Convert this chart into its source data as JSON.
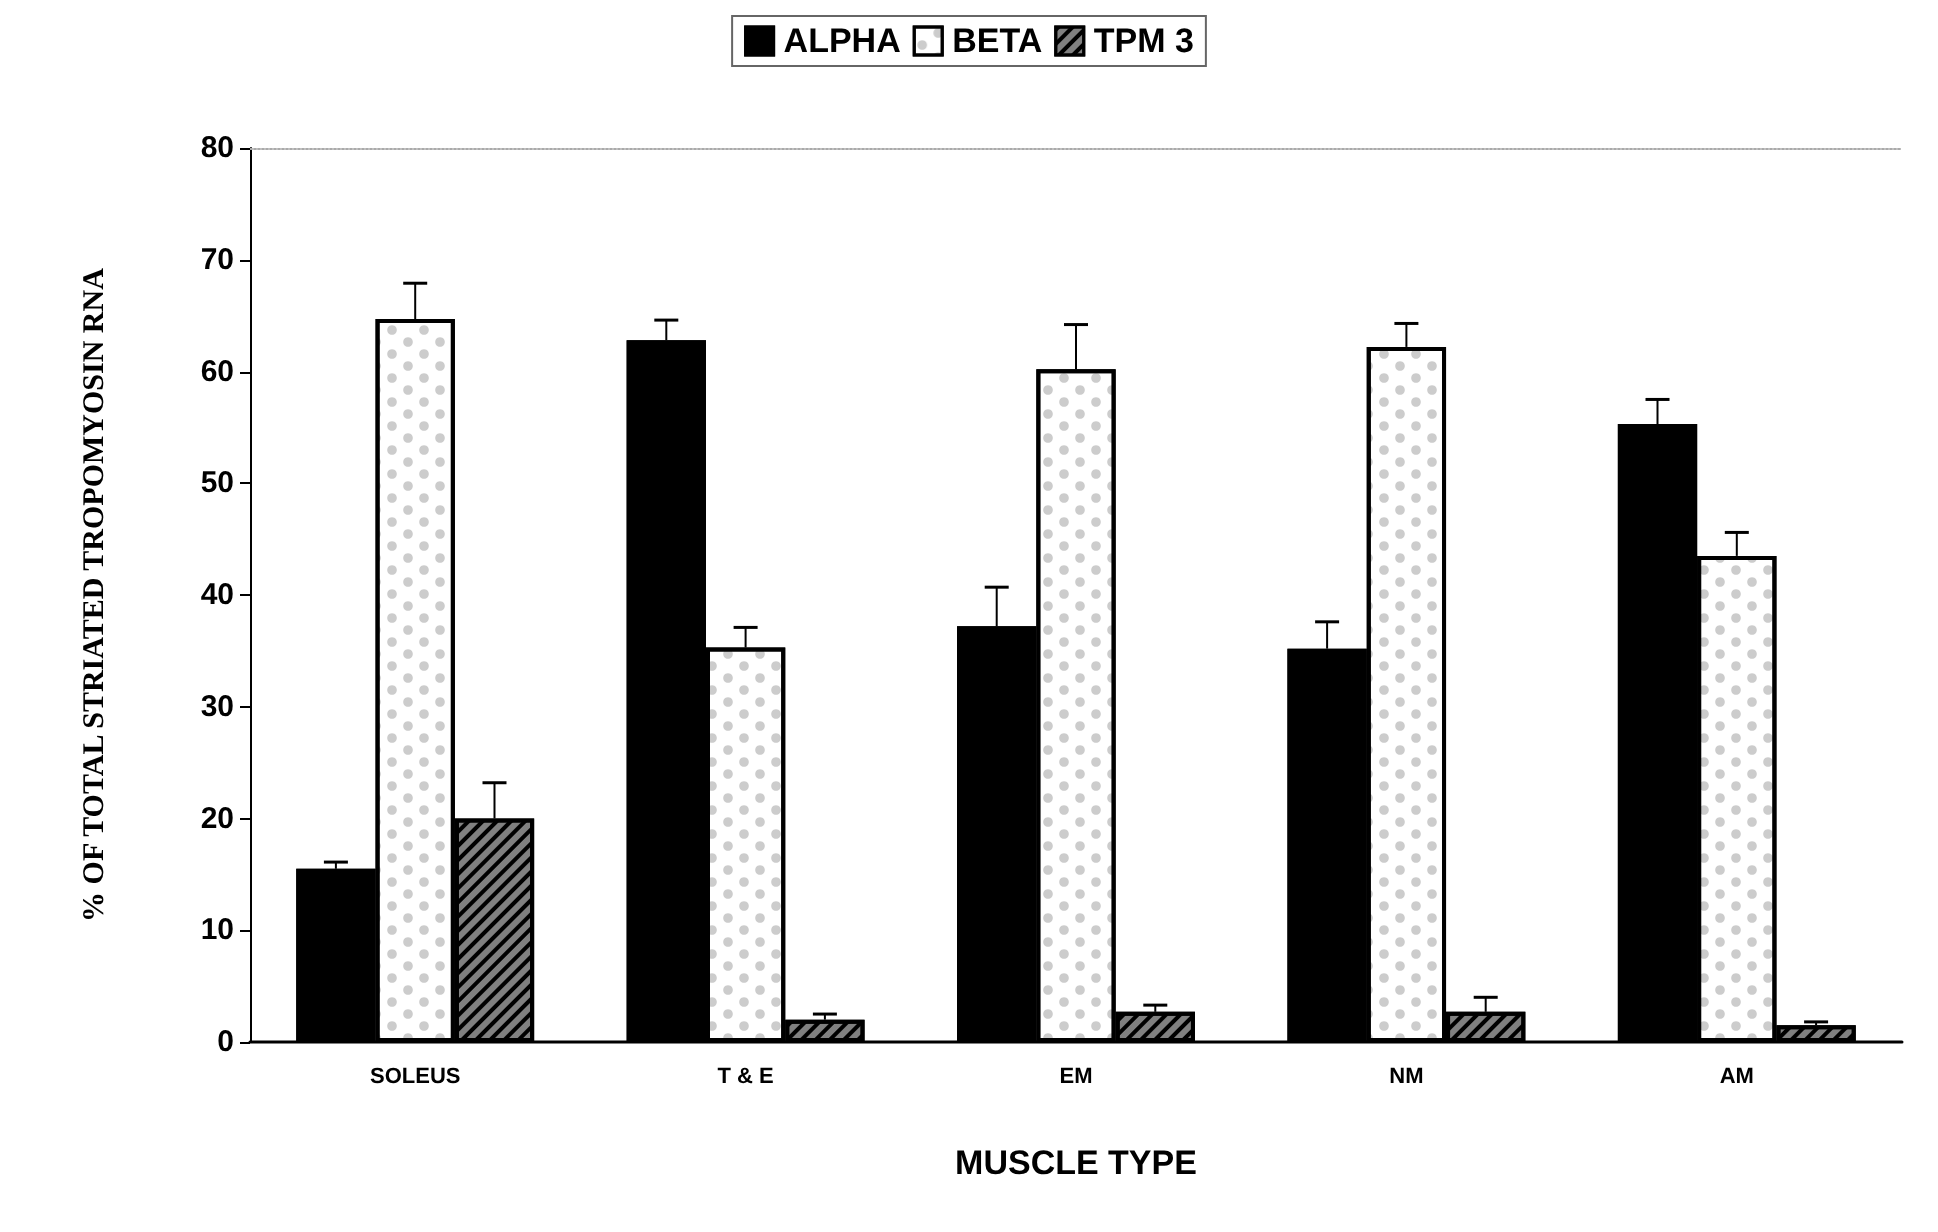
{
  "chart_data": {
    "type": "bar",
    "xlabel": "MUSCLE TYPE",
    "ylabel": "% OF TOTAL STRIATED TROPOMYOSIN RNA",
    "categories": [
      "SOLEUS",
      "T & E",
      "EM",
      "NM",
      "AM"
    ],
    "series": [
      {
        "name": "ALPHA",
        "color": "#000000",
        "values": [
          15.5,
          62.8,
          37.2,
          35.2,
          55.3
        ],
        "errors": [
          [
            15.5,
            16.1
          ],
          [
            62.8,
            64.6
          ],
          [
            37.2,
            40.7
          ],
          [
            35.2,
            37.6
          ],
          [
            55.3,
            57.5
          ]
        ]
      },
      {
        "name": "BETA",
        "color": "#ffffff",
        "values": [
          64.7,
          35.3,
          60.2,
          62.2,
          43.5
        ],
        "errors": [
          [
            64.7,
            67.9
          ],
          [
            35.3,
            37.1
          ],
          [
            60.2,
            64.2
          ],
          [
            62.2,
            64.3
          ],
          [
            43.5,
            45.6
          ]
        ]
      },
      {
        "name": "TPM 3",
        "color": "#808080",
        "values": [
          20,
          2,
          2.7,
          2.7,
          1.5
        ],
        "errors": [
          [
            20,
            23.2
          ],
          [
            2,
            2.5
          ],
          [
            2.7,
            3.3
          ],
          [
            2.7,
            4
          ],
          [
            1.5,
            1.8
          ]
        ]
      }
    ],
    "ylim": [
      0,
      80
    ],
    "yticks": [
      0,
      10,
      20,
      30,
      40,
      50,
      60,
      70,
      80
    ],
    "grid": false,
    "legend": "top"
  }
}
